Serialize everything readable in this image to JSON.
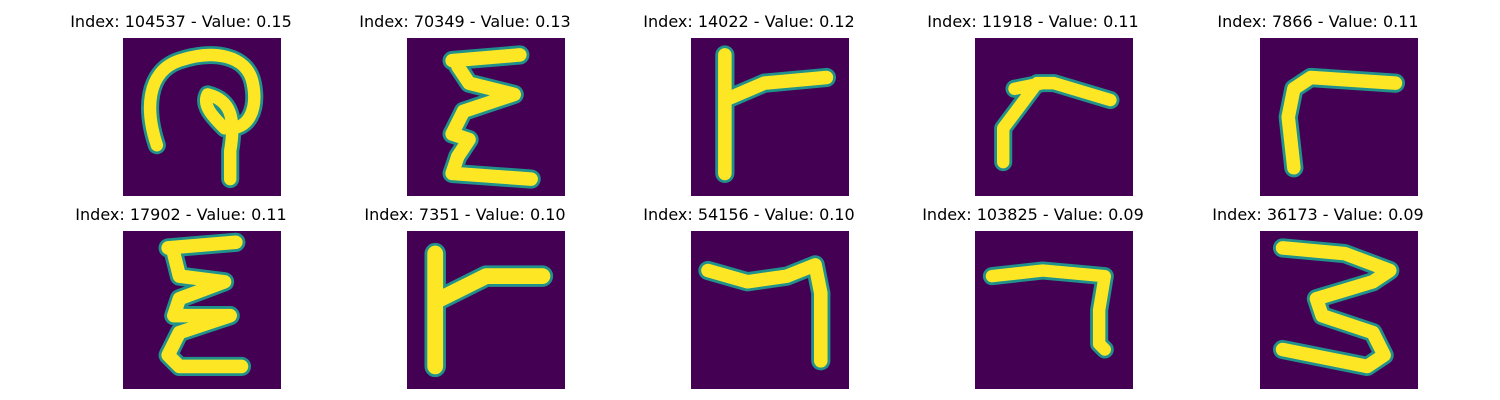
{
  "colors": {
    "background": "#440154",
    "stroke": "#fde725",
    "edge": "#21918c"
  },
  "panels": [
    {
      "title": "Index: 104537 - Value: 0.15",
      "glyph": "hook"
    },
    {
      "title": "Index: 70349 - Value: 0.13",
      "glyph": "zigzag"
    },
    {
      "title": "Index: 14022 - Value: 0.12",
      "glyph": "t-right"
    },
    {
      "title": "Index: 11918 - Value: 0.11",
      "glyph": "angle-left"
    },
    {
      "title": "Index: 7866 - Value: 0.11",
      "glyph": "angle-left-2"
    },
    {
      "title": "Index: 17902 - Value: 0.11",
      "glyph": "zigzag-2"
    },
    {
      "title": "Index: 7351 - Value: 0.10",
      "glyph": "t-right-2"
    },
    {
      "title": "Index: 54156 - Value: 0.10",
      "glyph": "seven"
    },
    {
      "title": "Index: 103825 - Value: 0.09",
      "glyph": "seven-2"
    },
    {
      "title": "Index: 36173 - Value: 0.09",
      "glyph": "three"
    }
  ]
}
